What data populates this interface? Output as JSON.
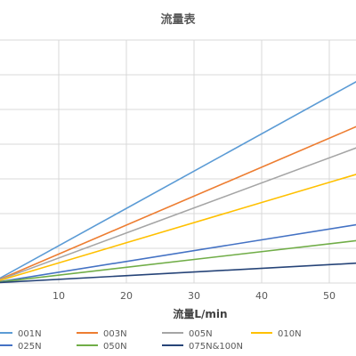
{
  "chart_data": {
    "type": "line",
    "title": "流量表",
    "xlabel": "流量L/min",
    "ylabel": "",
    "xlim": [
      0,
      55
    ],
    "ylim": [
      0,
      0.9
    ],
    "x_ticks": [
      10,
      20,
      30,
      40,
      50
    ],
    "grid": true,
    "legend": "bottom",
    "series": [
      {
        "name": "001N",
        "color": "#5b9bd5",
        "x": [
          0,
          55
        ],
        "y": [
          0,
          0.76
        ]
      },
      {
        "name": "003N",
        "color": "#ed7d31",
        "x": [
          0,
          55
        ],
        "y": [
          0,
          0.59
        ]
      },
      {
        "name": "005N",
        "color": "#a5a5a5",
        "x": [
          0,
          55
        ],
        "y": [
          0,
          0.51
        ]
      },
      {
        "name": "010N",
        "color": "#ffc000",
        "x": [
          0,
          55
        ],
        "y": [
          0,
          0.41
        ]
      },
      {
        "name": "025N",
        "color": "#4472c4",
        "x": [
          0,
          55
        ],
        "y": [
          0,
          0.22
        ]
      },
      {
        "name": "050N",
        "color": "#70ad47",
        "x": [
          0,
          55
        ],
        "y": [
          0,
          0.16
        ]
      },
      {
        "name": "075N&100N",
        "color": "#264478",
        "x": [
          0,
          55
        ],
        "y": [
          0,
          0.075
        ]
      }
    ]
  }
}
